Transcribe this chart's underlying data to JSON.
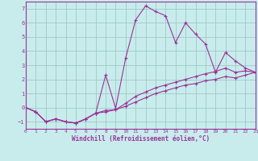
{
  "xlabel": "Windchill (Refroidissement éolien,°C)",
  "bg_color": "#c8ecec",
  "grid_color": "#a0c8c8",
  "line_color": "#993399",
  "xlim": [
    0,
    23
  ],
  "ylim": [
    -1.5,
    7.5
  ],
  "xticks": [
    0,
    1,
    2,
    3,
    4,
    5,
    6,
    7,
    8,
    9,
    10,
    11,
    12,
    13,
    14,
    15,
    16,
    17,
    18,
    19,
    20,
    21,
    22,
    23
  ],
  "yticks": [
    -1,
    0,
    1,
    2,
    3,
    4,
    5,
    6,
    7
  ],
  "lines": [
    {
      "x": [
        0,
        1,
        2,
        3,
        4,
        5,
        6,
        7,
        8,
        9,
        10,
        11,
        12,
        13,
        14,
        15,
        16,
        17,
        18,
        19,
        20,
        21,
        22,
        23
      ],
      "y": [
        0.0,
        -0.3,
        -1.0,
        -0.8,
        -1.0,
        -1.1,
        -0.8,
        -0.4,
        2.3,
        -0.05,
        3.5,
        6.2,
        7.2,
        6.8,
        6.5,
        4.6,
        6.0,
        5.2,
        4.5,
        2.5,
        3.9,
        3.3,
        2.8,
        2.5
      ]
    },
    {
      "x": [
        0,
        1,
        2,
        3,
        4,
        5,
        6,
        7,
        8,
        9,
        10,
        11,
        12,
        13,
        14,
        15,
        16,
        17,
        18,
        19,
        20,
        21,
        22,
        23
      ],
      "y": [
        0.0,
        -0.3,
        -1.0,
        -0.8,
        -1.0,
        -1.1,
        -0.8,
        -0.4,
        -0.3,
        -0.15,
        0.3,
        0.8,
        1.1,
        1.4,
        1.6,
        1.8,
        2.0,
        2.2,
        2.4,
        2.55,
        2.8,
        2.5,
        2.6,
        2.5
      ]
    },
    {
      "x": [
        0,
        1,
        2,
        3,
        4,
        5,
        6,
        7,
        8,
        9,
        10,
        11,
        12,
        13,
        14,
        15,
        16,
        17,
        18,
        19,
        20,
        21,
        22,
        23
      ],
      "y": [
        0.0,
        -0.3,
        -1.0,
        -0.8,
        -1.0,
        -1.1,
        -0.8,
        -0.4,
        -0.2,
        -0.15,
        0.1,
        0.4,
        0.7,
        1.0,
        1.2,
        1.4,
        1.6,
        1.7,
        1.9,
        2.0,
        2.2,
        2.1,
        2.3,
        2.5
      ]
    }
  ]
}
